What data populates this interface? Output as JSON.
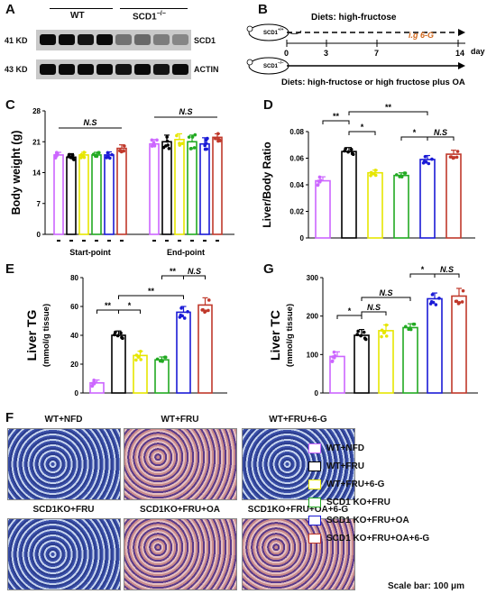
{
  "panelA": {
    "label": "A",
    "groups": [
      "WT",
      "SCD1"
    ],
    "group2_sup": "−/−",
    "sizes": [
      "41 KD",
      "43 KD"
    ],
    "proteins": [
      "SCD1",
      "ACTIN"
    ],
    "scd1_band_intensity": [
      1.0,
      1.0,
      0.95,
      1.0,
      0.45,
      0.5,
      0.4,
      0.35
    ],
    "actin_band_intensity": [
      1.0,
      1.0,
      1.0,
      1.0,
      0.95,
      1.0,
      0.95,
      1.0
    ]
  },
  "panelB": {
    "label": "B",
    "top_text": "Diets: high-fructose",
    "bottom_text": "Diets: high-fructose or high fructose plus OA",
    "treatment": "i.g 6-G",
    "ticks": [
      "0",
      "3",
      "7",
      "14"
    ],
    "unit": "day",
    "mouse_top": "SCD1",
    "mouse_top_sup": "+/+",
    "mouse_bottom": "SCD1",
    "mouse_bottom_sup": "−/−"
  },
  "legend": {
    "items": [
      {
        "label": "WT+NFD",
        "color": "#cc66ff"
      },
      {
        "label": "WT+FRU",
        "color": "#000000"
      },
      {
        "label": "WT+FRU+6-G",
        "color": "#e6e600"
      },
      {
        "label": "SCD1 KO+FRU",
        "color": "#22aa22"
      },
      {
        "label": "SCD1 KO+FRU+OA",
        "color": "#1a1ad6"
      },
      {
        "label": "SCD1 KO+FRU+OA+6-G",
        "color": "#c0392b"
      }
    ]
  },
  "panelF": {
    "label": "F",
    "images": [
      {
        "label": "WT+NFD",
        "stain": "blue"
      },
      {
        "label": "WT+FRU",
        "stain": "red"
      },
      {
        "label": "WT+FRU+6-G",
        "stain": "blue"
      },
      {
        "label": "SCD1KO+FRU",
        "stain": "blue"
      },
      {
        "label": "SCD1KO+FRU+OA",
        "stain": "red"
      },
      {
        "label": "SCD1KO+FRU+OA+6-G",
        "stain": "red"
      }
    ],
    "scale_bar": "Scale bar: 100 μm"
  },
  "chart_data": [
    {
      "id": "C",
      "label": "C",
      "type": "bar",
      "ylabel": "Body weight (g)",
      "ylim": [
        0,
        28
      ],
      "yticks": [
        0,
        7,
        14,
        21,
        28
      ],
      "groups": [
        {
          "name": "Start-point",
          "values": [
            18,
            17.5,
            18,
            18,
            18,
            19.5
          ],
          "errors": [
            0.6,
            0.8,
            0.6,
            0.6,
            0.7,
            0.8
          ]
        },
        {
          "name": "End-point",
          "values": [
            20.5,
            21,
            21.5,
            21,
            20.5,
            22
          ],
          "errors": [
            1.0,
            1.5,
            1.3,
            1.5,
            1.4,
            0.8
          ]
        }
      ],
      "annotations": [
        "N.S",
        "N.S"
      ]
    },
    {
      "id": "D",
      "label": "D",
      "type": "bar",
      "ylabel": "Liver/Body Ratio",
      "ylim": [
        0,
        0.08
      ],
      "yticks": [
        0.0,
        0.02,
        0.04,
        0.06,
        0.08
      ],
      "values": [
        0.043,
        0.065,
        0.049,
        0.047,
        0.059,
        0.063
      ],
      "errors": [
        0.003,
        0.003,
        0.002,
        0.002,
        0.003,
        0.003
      ],
      "annotations": [
        "**",
        "*",
        "**",
        "*",
        "N.S"
      ]
    },
    {
      "id": "E",
      "label": "E",
      "type": "bar",
      "ylabel": "Liver TG",
      "ylabel2": "(mmol/g tissue)",
      "ylim": [
        0,
        80
      ],
      "yticks": [
        0,
        20,
        40,
        60,
        80
      ],
      "values": [
        7,
        40,
        26,
        23,
        56,
        61
      ],
      "errors": [
        2,
        3,
        3,
        2,
        4,
        5
      ],
      "annotations": [
        "**",
        "*",
        "**",
        "**",
        "N.S"
      ]
    },
    {
      "id": "G",
      "label": "G",
      "type": "bar",
      "ylabel": "Liver TC",
      "ylabel2": "(mmol/g tissue)",
      "ylim": [
        0,
        300
      ],
      "yticks": [
        0,
        100,
        200,
        300
      ],
      "values": [
        95,
        150,
        162,
        170,
        245,
        252
      ],
      "errors": [
        12,
        15,
        15,
        10,
        15,
        20
      ],
      "annotations": [
        "*",
        "N.S",
        "N.S",
        "*",
        "N.S"
      ]
    }
  ]
}
